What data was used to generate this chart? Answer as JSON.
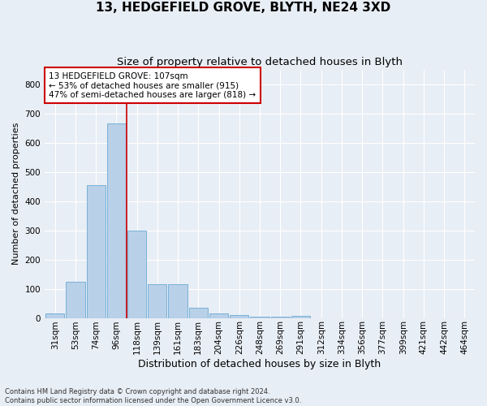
{
  "title1": "13, HEDGEFIELD GROVE, BLYTH, NE24 3XD",
  "title2": "Size of property relative to detached houses in Blyth",
  "xlabel": "Distribution of detached houses by size in Blyth",
  "ylabel": "Number of detached properties",
  "footnote": "Contains HM Land Registry data © Crown copyright and database right 2024.\nContains public sector information licensed under the Open Government Licence v3.0.",
  "bar_labels": [
    "31sqm",
    "53sqm",
    "74sqm",
    "96sqm",
    "118sqm",
    "139sqm",
    "161sqm",
    "183sqm",
    "204sqm",
    "226sqm",
    "248sqm",
    "269sqm",
    "291sqm",
    "312sqm",
    "334sqm",
    "356sqm",
    "377sqm",
    "399sqm",
    "421sqm",
    "442sqm",
    "464sqm"
  ],
  "bar_values": [
    15,
    125,
    455,
    665,
    300,
    115,
    115,
    35,
    15,
    10,
    5,
    5,
    8,
    0,
    0,
    0,
    0,
    0,
    0,
    0,
    0
  ],
  "bar_color": "#b8d0e8",
  "bar_edge_color": "#6aaad4",
  "vline_x": 3.5,
  "vline_color": "#cc0000",
  "annotation_line1": "13 HEDGEFIELD GROVE: 107sqm",
  "annotation_line2": "← 53% of detached houses are smaller (915)",
  "annotation_line3": "47% of semi-detached houses are larger (818) →",
  "annotation_box_color": "#cc0000",
  "ylim": [
    0,
    850
  ],
  "yticks": [
    0,
    100,
    200,
    300,
    400,
    500,
    600,
    700,
    800
  ],
  "background_color": "#e8eef5",
  "grid_color": "#ffffff",
  "title1_fontsize": 11,
  "title2_fontsize": 9.5,
  "ylabel_fontsize": 8,
  "xlabel_fontsize": 9,
  "tick_fontsize": 7.5,
  "annot_fontsize": 7.5,
  "footnote_fontsize": 6
}
